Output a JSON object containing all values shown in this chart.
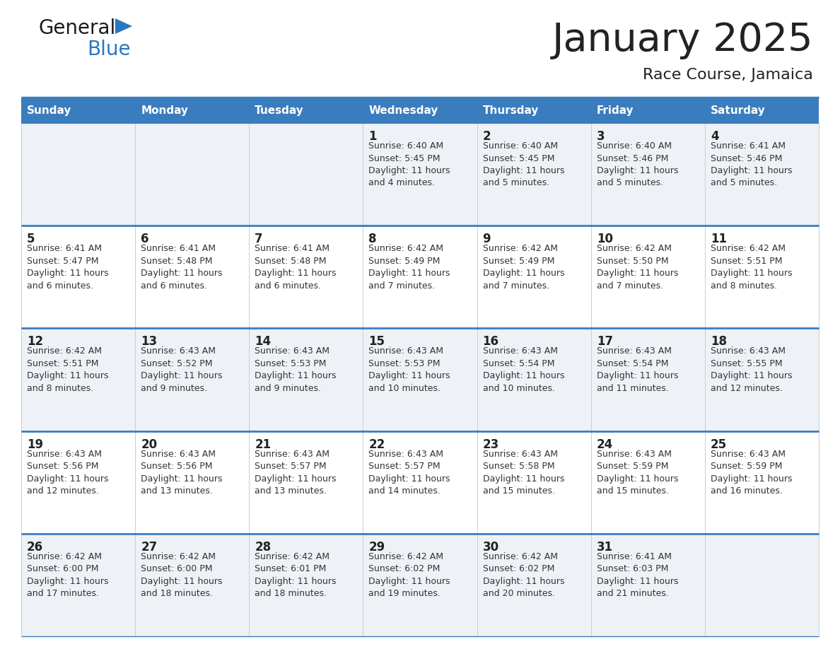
{
  "title": "January 2025",
  "subtitle": "Race Course, Jamaica",
  "days_of_week": [
    "Sunday",
    "Monday",
    "Tuesday",
    "Wednesday",
    "Thursday",
    "Friday",
    "Saturday"
  ],
  "header_bg": "#3a7dbe",
  "header_text": "#ffffff",
  "odd_row_bg": "#eef2f7",
  "even_row_bg": "#ffffff",
  "cell_text_color": "#333333",
  "day_num_color": "#222222",
  "border_color": "#3a7dbe",
  "thin_border": "#aaaaaa",
  "logo_general_color": "#1a1a1a",
  "logo_blue_color": "#2878c0",
  "calendar_data": [
    [
      {
        "day": 0,
        "info": ""
      },
      {
        "day": 0,
        "info": ""
      },
      {
        "day": 0,
        "info": ""
      },
      {
        "day": 1,
        "info": "Sunrise: 6:40 AM\nSunset: 5:45 PM\nDaylight: 11 hours\nand 4 minutes."
      },
      {
        "day": 2,
        "info": "Sunrise: 6:40 AM\nSunset: 5:45 PM\nDaylight: 11 hours\nand 5 minutes."
      },
      {
        "day": 3,
        "info": "Sunrise: 6:40 AM\nSunset: 5:46 PM\nDaylight: 11 hours\nand 5 minutes."
      },
      {
        "day": 4,
        "info": "Sunrise: 6:41 AM\nSunset: 5:46 PM\nDaylight: 11 hours\nand 5 minutes."
      }
    ],
    [
      {
        "day": 5,
        "info": "Sunrise: 6:41 AM\nSunset: 5:47 PM\nDaylight: 11 hours\nand 6 minutes."
      },
      {
        "day": 6,
        "info": "Sunrise: 6:41 AM\nSunset: 5:48 PM\nDaylight: 11 hours\nand 6 minutes."
      },
      {
        "day": 7,
        "info": "Sunrise: 6:41 AM\nSunset: 5:48 PM\nDaylight: 11 hours\nand 6 minutes."
      },
      {
        "day": 8,
        "info": "Sunrise: 6:42 AM\nSunset: 5:49 PM\nDaylight: 11 hours\nand 7 minutes."
      },
      {
        "day": 9,
        "info": "Sunrise: 6:42 AM\nSunset: 5:49 PM\nDaylight: 11 hours\nand 7 minutes."
      },
      {
        "day": 10,
        "info": "Sunrise: 6:42 AM\nSunset: 5:50 PM\nDaylight: 11 hours\nand 7 minutes."
      },
      {
        "day": 11,
        "info": "Sunrise: 6:42 AM\nSunset: 5:51 PM\nDaylight: 11 hours\nand 8 minutes."
      }
    ],
    [
      {
        "day": 12,
        "info": "Sunrise: 6:42 AM\nSunset: 5:51 PM\nDaylight: 11 hours\nand 8 minutes."
      },
      {
        "day": 13,
        "info": "Sunrise: 6:43 AM\nSunset: 5:52 PM\nDaylight: 11 hours\nand 9 minutes."
      },
      {
        "day": 14,
        "info": "Sunrise: 6:43 AM\nSunset: 5:53 PM\nDaylight: 11 hours\nand 9 minutes."
      },
      {
        "day": 15,
        "info": "Sunrise: 6:43 AM\nSunset: 5:53 PM\nDaylight: 11 hours\nand 10 minutes."
      },
      {
        "day": 16,
        "info": "Sunrise: 6:43 AM\nSunset: 5:54 PM\nDaylight: 11 hours\nand 10 minutes."
      },
      {
        "day": 17,
        "info": "Sunrise: 6:43 AM\nSunset: 5:54 PM\nDaylight: 11 hours\nand 11 minutes."
      },
      {
        "day": 18,
        "info": "Sunrise: 6:43 AM\nSunset: 5:55 PM\nDaylight: 11 hours\nand 12 minutes."
      }
    ],
    [
      {
        "day": 19,
        "info": "Sunrise: 6:43 AM\nSunset: 5:56 PM\nDaylight: 11 hours\nand 12 minutes."
      },
      {
        "day": 20,
        "info": "Sunrise: 6:43 AM\nSunset: 5:56 PM\nDaylight: 11 hours\nand 13 minutes."
      },
      {
        "day": 21,
        "info": "Sunrise: 6:43 AM\nSunset: 5:57 PM\nDaylight: 11 hours\nand 13 minutes."
      },
      {
        "day": 22,
        "info": "Sunrise: 6:43 AM\nSunset: 5:57 PM\nDaylight: 11 hours\nand 14 minutes."
      },
      {
        "day": 23,
        "info": "Sunrise: 6:43 AM\nSunset: 5:58 PM\nDaylight: 11 hours\nand 15 minutes."
      },
      {
        "day": 24,
        "info": "Sunrise: 6:43 AM\nSunset: 5:59 PM\nDaylight: 11 hours\nand 15 minutes."
      },
      {
        "day": 25,
        "info": "Sunrise: 6:43 AM\nSunset: 5:59 PM\nDaylight: 11 hours\nand 16 minutes."
      }
    ],
    [
      {
        "day": 26,
        "info": "Sunrise: 6:42 AM\nSunset: 6:00 PM\nDaylight: 11 hours\nand 17 minutes."
      },
      {
        "day": 27,
        "info": "Sunrise: 6:42 AM\nSunset: 6:00 PM\nDaylight: 11 hours\nand 18 minutes."
      },
      {
        "day": 28,
        "info": "Sunrise: 6:42 AM\nSunset: 6:01 PM\nDaylight: 11 hours\nand 18 minutes."
      },
      {
        "day": 29,
        "info": "Sunrise: 6:42 AM\nSunset: 6:02 PM\nDaylight: 11 hours\nand 19 minutes."
      },
      {
        "day": 30,
        "info": "Sunrise: 6:42 AM\nSunset: 6:02 PM\nDaylight: 11 hours\nand 20 minutes."
      },
      {
        "day": 31,
        "info": "Sunrise: 6:41 AM\nSunset: 6:03 PM\nDaylight: 11 hours\nand 21 minutes."
      },
      {
        "day": 0,
        "info": ""
      }
    ]
  ]
}
